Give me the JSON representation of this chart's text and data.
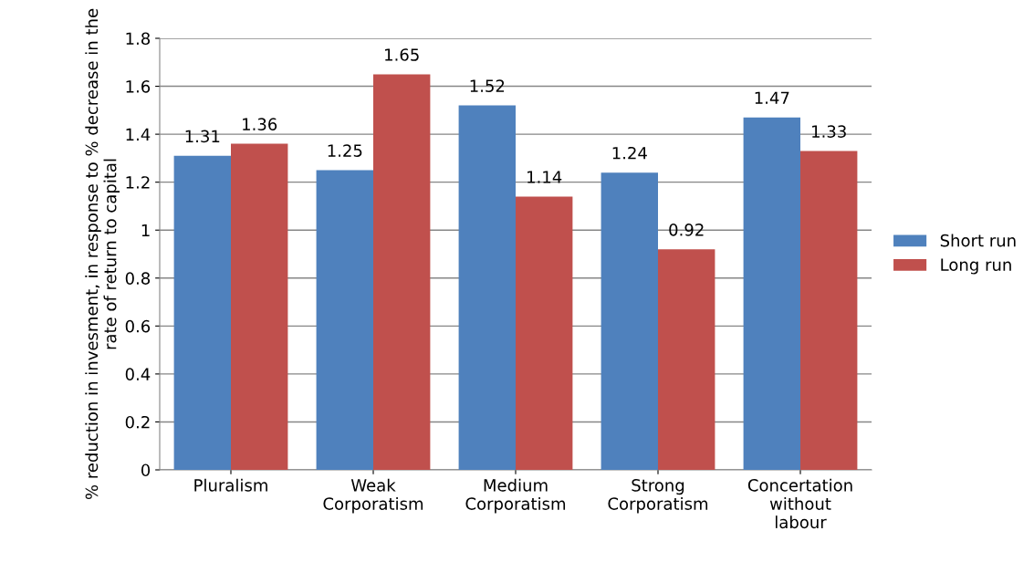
{
  "chart_data": {
    "type": "bar",
    "ylabel": "% reduction in invesment, in response to % decrease in the rate of return to capital",
    "categories": [
      "Pluralism",
      "Weak\nCorporatism",
      "Medium\nCorporatism",
      "Strong\nCorporatism",
      "Concertation\nwithout\nlabour"
    ],
    "series": [
      {
        "name": "Short run",
        "color": "#4f81bd",
        "values": [
          1.31,
          1.25,
          1.52,
          1.24,
          1.47
        ]
      },
      {
        "name": "Long run",
        "color": "#c0504d",
        "values": [
          1.36,
          1.65,
          1.14,
          0.92,
          1.33
        ]
      }
    ],
    "ylim": [
      0,
      1.8
    ],
    "yticks": [
      0,
      0.2,
      0.4,
      0.6,
      0.8,
      1,
      1.2,
      1.4,
      1.6,
      1.8
    ],
    "grid": "y",
    "legend": "right",
    "data_labels": true
  }
}
